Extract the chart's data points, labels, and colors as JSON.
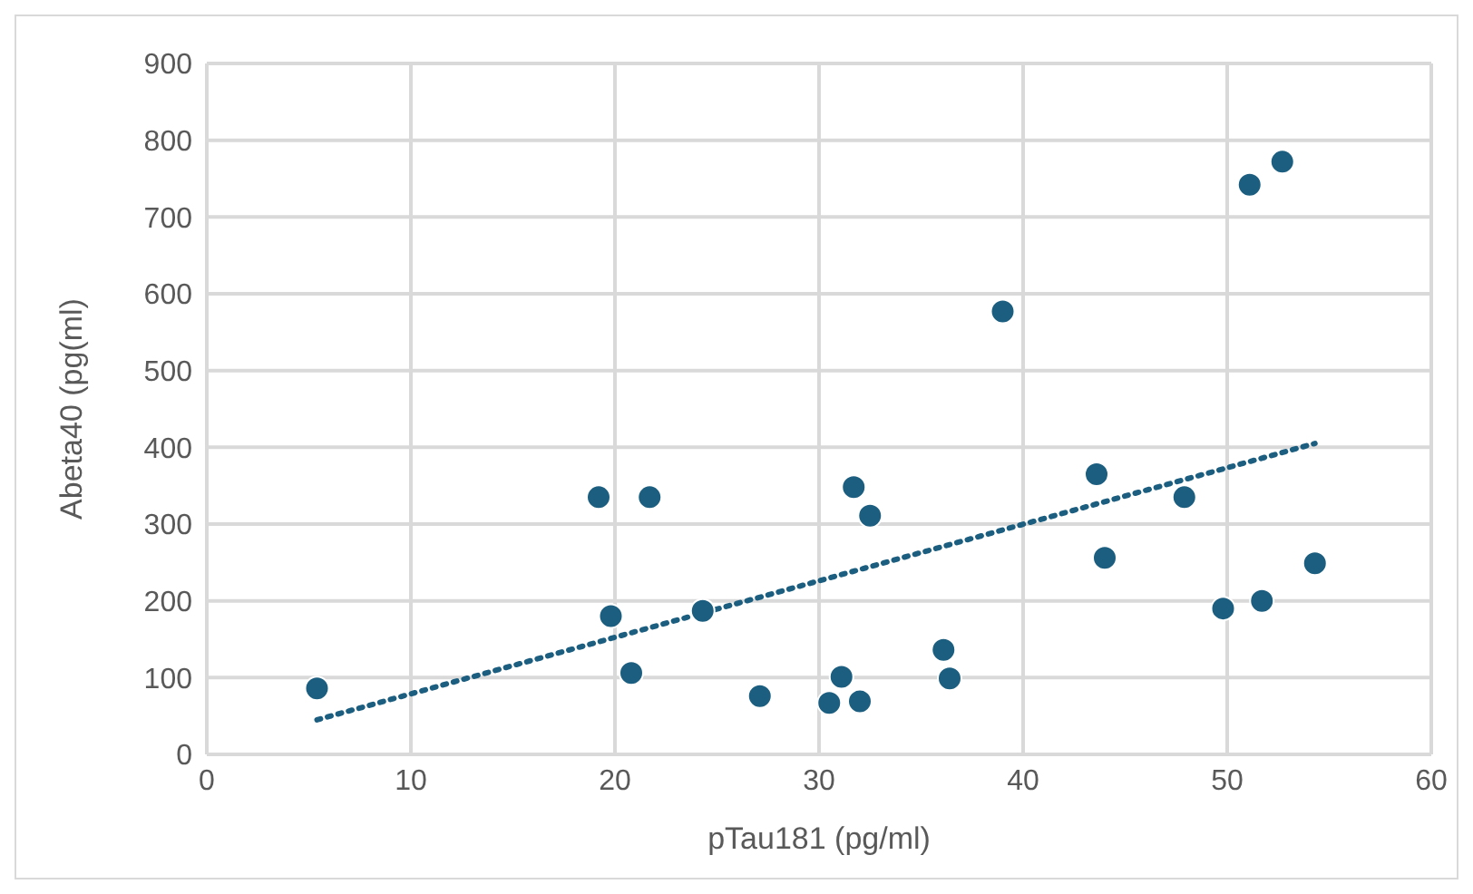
{
  "chart_data": {
    "type": "scatter",
    "xlabel": "pTau181 (pg/ml)",
    "ylabel": "Abeta40 (pg(ml)",
    "xlim": [
      0,
      60
    ],
    "xticks": [
      0,
      10,
      20,
      30,
      40,
      50,
      60
    ],
    "ylim": [
      0,
      900
    ],
    "yticks": [
      0,
      100,
      200,
      300,
      400,
      500,
      600,
      700,
      800,
      900
    ],
    "grid": true,
    "marker": "circle",
    "series": [
      {
        "color": "#1b5e7f",
        "x": [
          5.4,
          19.2,
          19.8,
          21.7,
          20.8,
          24.3,
          27.1,
          30.5,
          31.1,
          32.0,
          31.7,
          32.5,
          36.1,
          36.4,
          39.0,
          43.6,
          44.0,
          47.9,
          49.8,
          51.7,
          54.3,
          51.1,
          52.7
        ],
        "values": [
          86,
          335,
          180,
          335,
          106,
          187,
          76,
          67,
          101,
          69,
          348,
          311,
          136,
          99,
          577,
          365,
          256,
          335,
          190,
          200,
          249,
          742,
          772
        ]
      },
      {
        "type": "line",
        "color": "#1b5e7f",
        "line_style": "dotted",
        "marker": "none",
        "x": [
          5.4,
          54.3
        ],
        "values": [
          45,
          405
        ]
      }
    ]
  }
}
